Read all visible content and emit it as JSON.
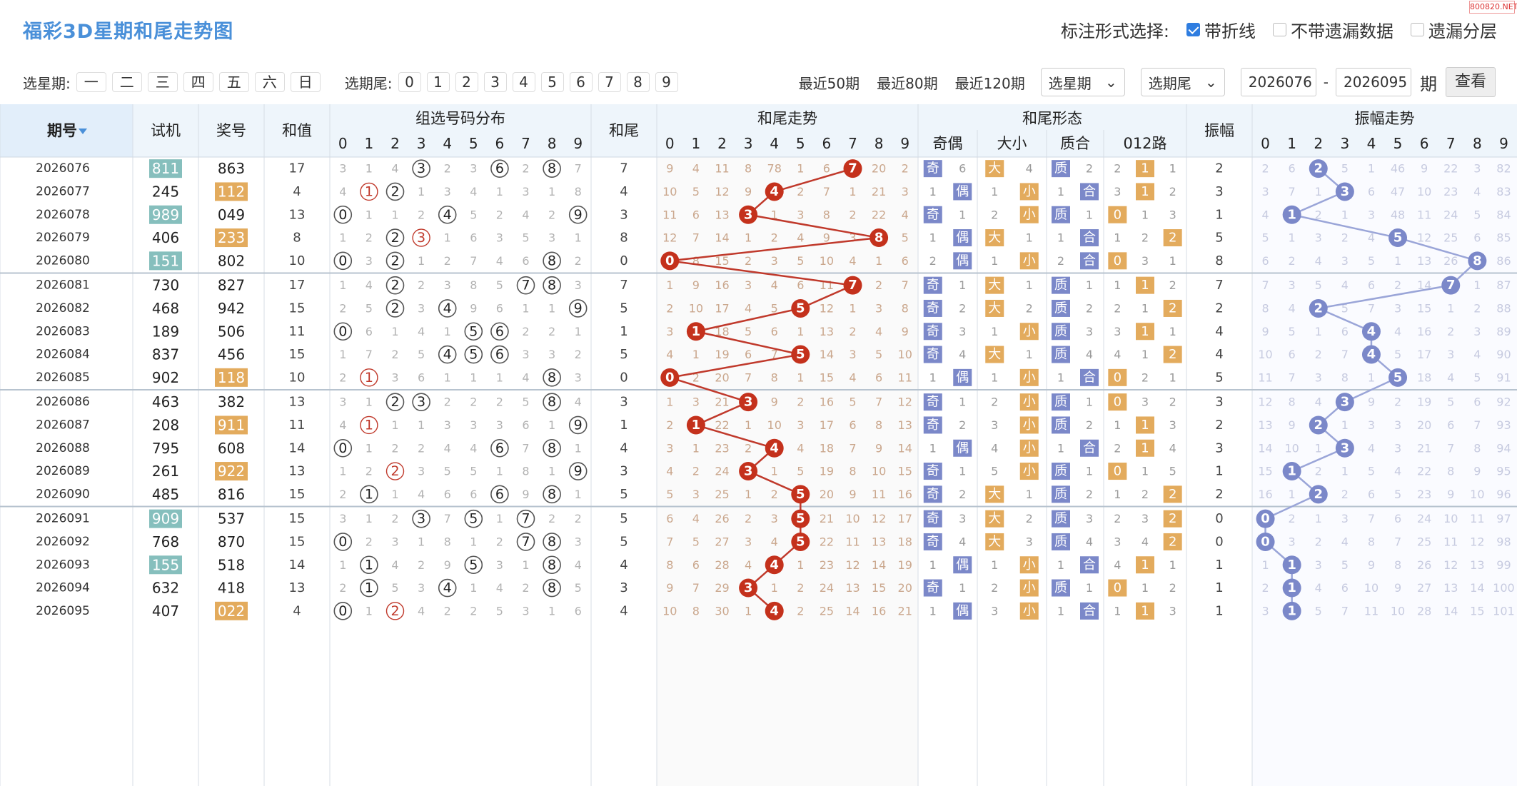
{
  "watermark": "800820.NET",
  "title": "福彩3D星期和尾走势图",
  "options": {
    "label": "标注形式选择:",
    "items": [
      {
        "label": "带折线",
        "checked": true
      },
      {
        "label": "不带遗漏数据",
        "checked": false
      },
      {
        "label": "遗漏分层",
        "checked": false
      }
    ]
  },
  "controls": {
    "weekday_label": "选星期:",
    "weekdays": [
      "一",
      "二",
      "三",
      "四",
      "五",
      "六",
      "日"
    ],
    "tail_label": "选期尾:",
    "tails": [
      "0",
      "1",
      "2",
      "3",
      "4",
      "5",
      "6",
      "7",
      "8",
      "9"
    ],
    "recent": [
      "最近50期",
      "最近80期",
      "最近120期"
    ],
    "select_weekday": "选星期",
    "select_tail": "选期尾",
    "from": "2026076",
    "dash": "-",
    "to": "2026095",
    "period_label": "期",
    "query": "查看"
  },
  "headers": {
    "issue": "期号",
    "test": "试机",
    "prize": "奖号",
    "sum": "和值",
    "dist": "组选号码分布",
    "tail": "和尾",
    "trend": "和尾走势",
    "form": "和尾形态",
    "oe": "奇偶",
    "bs": "大小",
    "pc": "质合",
    "r012": "012路",
    "amp": "振幅",
    "amptrend": "振幅走势",
    "digits": [
      "0",
      "1",
      "2",
      "3",
      "4",
      "5",
      "6",
      "7",
      "8",
      "9"
    ]
  },
  "colors": {
    "accent": "#4a90d9",
    "red": "#c0392b",
    "lavender": "#7b88c9",
    "teal": "#86bfbd",
    "orange": "#e3ab5d"
  },
  "rows": [
    {
      "id": "2026076",
      "test": "811",
      "test_hl": true,
      "prize": "863",
      "prize_hl": false,
      "sum": "17",
      "dist": [
        "3",
        "1",
        "4",
        "●3",
        "2",
        "3",
        "●6",
        "2",
        "●8",
        "7"
      ],
      "tail": "7",
      "trend": [
        "9",
        "4",
        "11",
        "8",
        "78",
        "1",
        "6",
        "●7",
        "20",
        "2"
      ],
      "oe": [
        "奇",
        "6"
      ],
      "bs": [
        "大",
        "4"
      ],
      "pc": [
        "质",
        "2"
      ],
      "r012": [
        "2",
        "■1",
        "1"
      ],
      "amp": "2",
      "amptrend": [
        "2",
        "6",
        "●2",
        "5",
        "1",
        "46",
        "9",
        "22",
        "3",
        "82"
      ]
    },
    {
      "id": "2026077",
      "test": "245",
      "test_hl": false,
      "prize": "112",
      "prize_hl": true,
      "sum": "4",
      "dist": [
        "4",
        "○1",
        "●2",
        "1",
        "3",
        "4",
        "1",
        "3",
        "1",
        "8"
      ],
      "tail": "4",
      "trend": [
        "10",
        "5",
        "12",
        "9",
        "●4",
        "2",
        "7",
        "1",
        "21",
        "3"
      ],
      "oe": [
        "1",
        "偶"
      ],
      "bs": [
        "1",
        "小"
      ],
      "pc": [
        "1",
        "合"
      ],
      "r012": [
        "3",
        "■1",
        "2"
      ],
      "amp": "3",
      "amptrend": [
        "3",
        "7",
        "1",
        "●3",
        "6",
        "47",
        "10",
        "23",
        "4",
        "83"
      ]
    },
    {
      "id": "2026078",
      "test": "989",
      "test_hl": true,
      "prize": "049",
      "prize_hl": false,
      "sum": "13",
      "dist": [
        "●0",
        "1",
        "1",
        "2",
        "●4",
        "5",
        "2",
        "4",
        "2",
        "●9"
      ],
      "tail": "3",
      "trend": [
        "11",
        "6",
        "13",
        "●3",
        "1",
        "3",
        "8",
        "2",
        "22",
        "4"
      ],
      "oe": [
        "奇",
        "1"
      ],
      "bs": [
        "2",
        "小"
      ],
      "pc": [
        "质",
        "1"
      ],
      "r012": [
        "■0",
        "1",
        "3"
      ],
      "amp": "1",
      "amptrend": [
        "4",
        "●1",
        "2",
        "1",
        "3",
        "48",
        "11",
        "24",
        "5",
        "84"
      ]
    },
    {
      "id": "2026079",
      "test": "406",
      "test_hl": false,
      "prize": "233",
      "prize_hl": true,
      "sum": "8",
      "dist": [
        "1",
        "2",
        "●2",
        "○3",
        "1",
        "6",
        "3",
        "5",
        "3",
        "1"
      ],
      "tail": "8",
      "trend": [
        "12",
        "7",
        "14",
        "1",
        "2",
        "4",
        "9",
        "3",
        "●8",
        "5"
      ],
      "oe": [
        "1",
        "偶"
      ],
      "bs": [
        "大",
        "1"
      ],
      "pc": [
        "1",
        "合"
      ],
      "r012": [
        "1",
        "2",
        "■2"
      ],
      "amp": "5",
      "amptrend": [
        "5",
        "1",
        "3",
        "2",
        "4",
        "●5",
        "12",
        "25",
        "6",
        "85"
      ]
    },
    {
      "id": "2026080",
      "test": "151",
      "test_hl": true,
      "prize": "802",
      "prize_hl": false,
      "sum": "10",
      "dist": [
        "●0",
        "3",
        "●2",
        "1",
        "2",
        "7",
        "4",
        "6",
        "●8",
        "2"
      ],
      "tail": "0",
      "trend": [
        "●0",
        "8",
        "15",
        "2",
        "3",
        "5",
        "10",
        "4",
        "1",
        "6"
      ],
      "oe": [
        "2",
        "偶"
      ],
      "bs": [
        "1",
        "小"
      ],
      "pc": [
        "2",
        "合"
      ],
      "r012": [
        "■0",
        "3",
        "1"
      ],
      "amp": "8",
      "amptrend": [
        "6",
        "2",
        "4",
        "3",
        "5",
        "1",
        "13",
        "26",
        "●8",
        "86"
      ]
    },
    {
      "id": "2026081",
      "test": "730",
      "test_hl": false,
      "prize": "827",
      "prize_hl": false,
      "sum": "17",
      "dist": [
        "1",
        "4",
        "●2",
        "2",
        "3",
        "8",
        "5",
        "●7",
        "●8",
        "3"
      ],
      "tail": "7",
      "trend": [
        "1",
        "9",
        "16",
        "3",
        "4",
        "6",
        "11",
        "●7",
        "2",
        "7"
      ],
      "oe": [
        "奇",
        "1"
      ],
      "bs": [
        "大",
        "1"
      ],
      "pc": [
        "质",
        "1"
      ],
      "r012": [
        "1",
        "■1",
        "2"
      ],
      "amp": "7",
      "amptrend": [
        "7",
        "3",
        "5",
        "4",
        "6",
        "2",
        "14",
        "●7",
        "1",
        "87"
      ]
    },
    {
      "id": "2026082",
      "test": "468",
      "test_hl": false,
      "prize": "942",
      "prize_hl": false,
      "sum": "15",
      "dist": [
        "2",
        "5",
        "●2",
        "3",
        "●4",
        "9",
        "6",
        "1",
        "1",
        "●9"
      ],
      "tail": "5",
      "trend": [
        "2",
        "10",
        "17",
        "4",
        "5",
        "●5",
        "12",
        "1",
        "3",
        "8"
      ],
      "oe": [
        "奇",
        "2"
      ],
      "bs": [
        "大",
        "2"
      ],
      "pc": [
        "质",
        "2"
      ],
      "r012": [
        "2",
        "1",
        "■2"
      ],
      "amp": "2",
      "amptrend": [
        "8",
        "4",
        "●2",
        "5",
        "7",
        "3",
        "15",
        "1",
        "2",
        "88"
      ]
    },
    {
      "id": "2026083",
      "test": "189",
      "test_hl": false,
      "prize": "506",
      "prize_hl": false,
      "sum": "11",
      "dist": [
        "●0",
        "6",
        "1",
        "4",
        "1",
        "●5",
        "●6",
        "2",
        "2",
        "1"
      ],
      "tail": "1",
      "trend": [
        "3",
        "●1",
        "18",
        "5",
        "6",
        "1",
        "13",
        "2",
        "4",
        "9"
      ],
      "oe": [
        "奇",
        "3"
      ],
      "bs": [
        "1",
        "小"
      ],
      "pc": [
        "质",
        "3"
      ],
      "r012": [
        "3",
        "■1",
        "1"
      ],
      "amp": "4",
      "amptrend": [
        "9",
        "5",
        "1",
        "6",
        "●4",
        "4",
        "16",
        "2",
        "3",
        "89"
      ]
    },
    {
      "id": "2026084",
      "test": "837",
      "test_hl": false,
      "prize": "456",
      "prize_hl": false,
      "sum": "15",
      "dist": [
        "1",
        "7",
        "2",
        "5",
        "●4",
        "●5",
        "●6",
        "3",
        "3",
        "2"
      ],
      "tail": "5",
      "trend": [
        "4",
        "1",
        "19",
        "6",
        "7",
        "●5",
        "14",
        "3",
        "5",
        "10"
      ],
      "oe": [
        "奇",
        "4"
      ],
      "bs": [
        "大",
        "1"
      ],
      "pc": [
        "质",
        "4"
      ],
      "r012": [
        "4",
        "1",
        "■2"
      ],
      "amp": "4",
      "amptrend": [
        "10",
        "6",
        "2",
        "7",
        "●4",
        "5",
        "17",
        "3",
        "4",
        "90"
      ]
    },
    {
      "id": "2026085",
      "test": "902",
      "test_hl": false,
      "prize": "118",
      "prize_hl": true,
      "sum": "10",
      "dist": [
        "2",
        "○1",
        "3",
        "6",
        "1",
        "1",
        "1",
        "4",
        "●8",
        "3"
      ],
      "tail": "0",
      "trend": [
        "●0",
        "2",
        "20",
        "7",
        "8",
        "1",
        "15",
        "4",
        "6",
        "11"
      ],
      "oe": [
        "1",
        "偶"
      ],
      "bs": [
        "1",
        "小"
      ],
      "pc": [
        "1",
        "合"
      ],
      "r012": [
        "■0",
        "2",
        "1"
      ],
      "amp": "5",
      "amptrend": [
        "11",
        "7",
        "3",
        "8",
        "1",
        "●5",
        "18",
        "4",
        "5",
        "91"
      ]
    },
    {
      "id": "2026086",
      "test": "463",
      "test_hl": false,
      "prize": "382",
      "prize_hl": false,
      "sum": "13",
      "dist": [
        "3",
        "1",
        "●2",
        "●3",
        "2",
        "2",
        "2",
        "5",
        "●8",
        "4"
      ],
      "tail": "3",
      "trend": [
        "1",
        "3",
        "21",
        "●3",
        "9",
        "2",
        "16",
        "5",
        "7",
        "12"
      ],
      "oe": [
        "奇",
        "1"
      ],
      "bs": [
        "2",
        "小"
      ],
      "pc": [
        "质",
        "1"
      ],
      "r012": [
        "■0",
        "3",
        "2"
      ],
      "amp": "3",
      "amptrend": [
        "12",
        "8",
        "4",
        "●3",
        "9",
        "2",
        "19",
        "5",
        "6",
        "92"
      ]
    },
    {
      "id": "2026087",
      "test": "208",
      "test_hl": false,
      "prize": "911",
      "prize_hl": true,
      "sum": "11",
      "dist": [
        "4",
        "○1",
        "1",
        "1",
        "3",
        "3",
        "3",
        "6",
        "1",
        "●9"
      ],
      "tail": "1",
      "trend": [
        "2",
        "●1",
        "22",
        "1",
        "10",
        "3",
        "17",
        "6",
        "8",
        "13"
      ],
      "oe": [
        "奇",
        "2"
      ],
      "bs": [
        "3",
        "小"
      ],
      "pc": [
        "质",
        "2"
      ],
      "r012": [
        "1",
        "■1",
        "3"
      ],
      "amp": "2",
      "amptrend": [
        "13",
        "9",
        "●2",
        "1",
        "3",
        "3",
        "20",
        "6",
        "7",
        "93"
      ]
    },
    {
      "id": "2026088",
      "test": "795",
      "test_hl": false,
      "prize": "608",
      "prize_hl": false,
      "sum": "14",
      "dist": [
        "●0",
        "1",
        "2",
        "2",
        "4",
        "4",
        "●6",
        "7",
        "●8",
        "1"
      ],
      "tail": "4",
      "trend": [
        "3",
        "1",
        "23",
        "2",
        "●4",
        "4",
        "18",
        "7",
        "9",
        "14"
      ],
      "oe": [
        "1",
        "偶"
      ],
      "bs": [
        "4",
        "小"
      ],
      "pc": [
        "1",
        "合"
      ],
      "r012": [
        "2",
        "■1",
        "4"
      ],
      "amp": "3",
      "amptrend": [
        "14",
        "10",
        "1",
        "●3",
        "4",
        "3",
        "21",
        "7",
        "8",
        "94"
      ]
    },
    {
      "id": "2026089",
      "test": "261",
      "test_hl": false,
      "prize": "922",
      "prize_hl": true,
      "sum": "13",
      "dist": [
        "1",
        "2",
        "○2",
        "3",
        "5",
        "5",
        "1",
        "8",
        "1",
        "●9"
      ],
      "tail": "3",
      "trend": [
        "4",
        "2",
        "24",
        "●3",
        "1",
        "5",
        "19",
        "8",
        "10",
        "15"
      ],
      "oe": [
        "奇",
        "1"
      ],
      "bs": [
        "5",
        "小"
      ],
      "pc": [
        "质",
        "1"
      ],
      "r012": [
        "■0",
        "1",
        "5"
      ],
      "amp": "1",
      "amptrend": [
        "15",
        "●1",
        "2",
        "1",
        "5",
        "4",
        "22",
        "8",
        "9",
        "95"
      ]
    },
    {
      "id": "2026090",
      "test": "485",
      "test_hl": false,
      "prize": "816",
      "prize_hl": false,
      "sum": "15",
      "dist": [
        "2",
        "●1",
        "1",
        "4",
        "6",
        "6",
        "●6",
        "9",
        "●8",
        "1"
      ],
      "tail": "5",
      "trend": [
        "5",
        "3",
        "25",
        "1",
        "2",
        "●5",
        "20",
        "9",
        "11",
        "16"
      ],
      "oe": [
        "奇",
        "2"
      ],
      "bs": [
        "大",
        "1"
      ],
      "pc": [
        "质",
        "2"
      ],
      "r012": [
        "1",
        "2",
        "■2"
      ],
      "amp": "2",
      "amptrend": [
        "16",
        "1",
        "●2",
        "2",
        "6",
        "5",
        "23",
        "9",
        "10",
        "96"
      ]
    },
    {
      "id": "2026091",
      "test": "909",
      "test_hl": true,
      "prize": "537",
      "prize_hl": false,
      "sum": "15",
      "dist": [
        "3",
        "1",
        "2",
        "●3",
        "7",
        "●5",
        "1",
        "●7",
        "2",
        "2"
      ],
      "tail": "5",
      "trend": [
        "6",
        "4",
        "26",
        "2",
        "3",
        "●5",
        "21",
        "10",
        "12",
        "17"
      ],
      "oe": [
        "奇",
        "3"
      ],
      "bs": [
        "大",
        "2"
      ],
      "pc": [
        "质",
        "3"
      ],
      "r012": [
        "2",
        "3",
        "■2"
      ],
      "amp": "0",
      "amptrend": [
        "●0",
        "2",
        "1",
        "3",
        "7",
        "6",
        "24",
        "10",
        "11",
        "97"
      ]
    },
    {
      "id": "2026092",
      "test": "768",
      "test_hl": false,
      "prize": "870",
      "prize_hl": false,
      "sum": "15",
      "dist": [
        "●0",
        "2",
        "3",
        "1",
        "8",
        "1",
        "2",
        "●7",
        "●8",
        "3"
      ],
      "tail": "5",
      "trend": [
        "7",
        "5",
        "27",
        "3",
        "4",
        "●5",
        "22",
        "11",
        "13",
        "18"
      ],
      "oe": [
        "奇",
        "4"
      ],
      "bs": [
        "大",
        "3"
      ],
      "pc": [
        "质",
        "4"
      ],
      "r012": [
        "3",
        "4",
        "■2"
      ],
      "amp": "0",
      "amptrend": [
        "●0",
        "3",
        "2",
        "4",
        "8",
        "7",
        "25",
        "11",
        "12",
        "98"
      ]
    },
    {
      "id": "2026093",
      "test": "155",
      "test_hl": true,
      "prize": "518",
      "prize_hl": false,
      "sum": "14",
      "dist": [
        "1",
        "●1",
        "4",
        "2",
        "9",
        "●5",
        "3",
        "1",
        "●8",
        "4"
      ],
      "tail": "4",
      "trend": [
        "8",
        "6",
        "28",
        "4",
        "●4",
        "1",
        "23",
        "12",
        "14",
        "19"
      ],
      "oe": [
        "1",
        "偶"
      ],
      "bs": [
        "1",
        "小"
      ],
      "pc": [
        "1",
        "合"
      ],
      "r012": [
        "4",
        "■1",
        "1"
      ],
      "amp": "1",
      "amptrend": [
        "1",
        "●1",
        "3",
        "5",
        "9",
        "8",
        "26",
        "12",
        "13",
        "99"
      ]
    },
    {
      "id": "2026094",
      "test": "632",
      "test_hl": false,
      "prize": "418",
      "prize_hl": false,
      "sum": "13",
      "dist": [
        "2",
        "●1",
        "5",
        "3",
        "●4",
        "1",
        "4",
        "2",
        "●8",
        "5"
      ],
      "tail": "3",
      "trend": [
        "9",
        "7",
        "29",
        "●3",
        "1",
        "2",
        "24",
        "13",
        "15",
        "20"
      ],
      "oe": [
        "奇",
        "1"
      ],
      "bs": [
        "2",
        "小"
      ],
      "pc": [
        "质",
        "1"
      ],
      "r012": [
        "■0",
        "1",
        "2"
      ],
      "amp": "1",
      "amptrend": [
        "2",
        "●1",
        "4",
        "6",
        "10",
        "9",
        "27",
        "13",
        "14",
        "100"
      ]
    },
    {
      "id": "2026095",
      "test": "407",
      "test_hl": false,
      "prize": "022",
      "prize_hl": true,
      "sum": "4",
      "dist": [
        "●0",
        "1",
        "○2",
        "4",
        "2",
        "2",
        "5",
        "3",
        "1",
        "6"
      ],
      "tail": "4",
      "trend": [
        "10",
        "8",
        "30",
        "1",
        "●4",
        "2",
        "25",
        "14",
        "16",
        "21"
      ],
      "oe": [
        "1",
        "偶"
      ],
      "bs": [
        "3",
        "小"
      ],
      "pc": [
        "1",
        "合"
      ],
      "r012": [
        "1",
        "■1",
        "3"
      ],
      "amp": "1",
      "amptrend": [
        "3",
        "●1",
        "5",
        "7",
        "11",
        "10",
        "28",
        "14",
        "15",
        "101"
      ]
    }
  ]
}
